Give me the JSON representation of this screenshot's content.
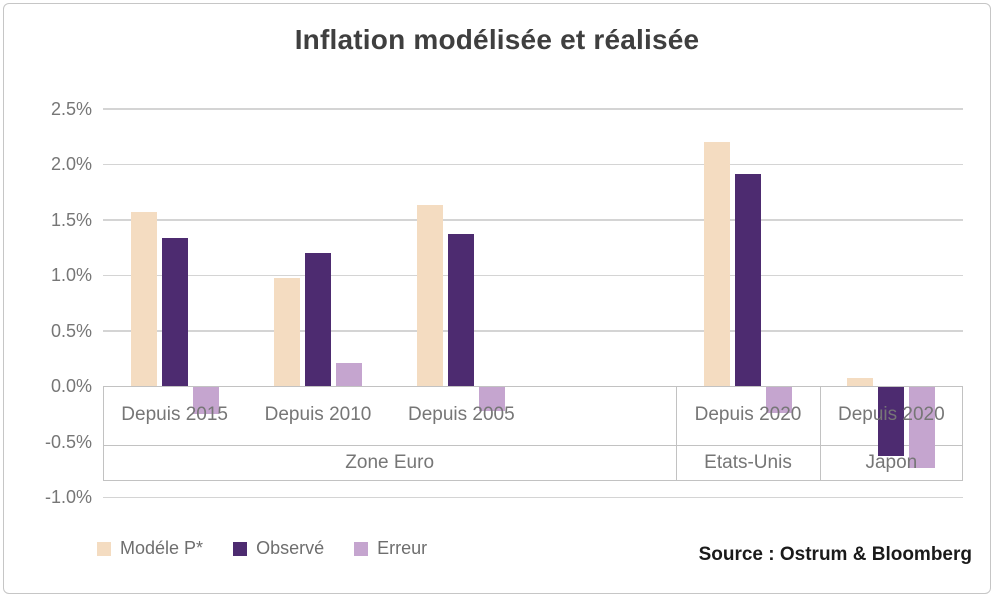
{
  "title": "Inflation modélisée et réalisée",
  "source_caption": "Source : Ostrum & Bloomberg",
  "colors": {
    "modele": "#F4DCC1",
    "observe": "#4D2B70",
    "erreur": "#C5A5CF",
    "gridline": "#D4D4D4",
    "band_border": "#C2C2C2",
    "title_text": "#3F3F3F",
    "axis_text": "#767676",
    "source_text": "#1A1A1A"
  },
  "legend": [
    {
      "label": "Modéle P*",
      "color": "#F4DCC1"
    },
    {
      "label": "Observé",
      "color": "#4D2B70"
    },
    {
      "label": "Erreur",
      "color": "#C5A5CF"
    }
  ],
  "chart_data": {
    "type": "bar",
    "title": "Inflation modélisée et réalisée",
    "unit": "%",
    "ylim": [
      -1.0,
      2.5
    ],
    "grid": true,
    "legend_position": "bottom-left",
    "yticks": [
      {
        "value": 2.5,
        "label": "2.5%"
      },
      {
        "value": 2.0,
        "label": "2.0%"
      },
      {
        "value": 1.5,
        "label": "1.5%"
      },
      {
        "value": 1.0,
        "label": "1.0%"
      },
      {
        "value": 0.5,
        "label": "0.5%"
      },
      {
        "value": 0.0,
        "label": "0.0%"
      },
      {
        "value": -0.5,
        "label": "-0.5%"
      },
      {
        "value": -1.0,
        "label": "-1.0%"
      }
    ],
    "categories": [
      "Depuis 2015",
      "Depuis 2010",
      "Depuis 2005",
      "",
      "Depuis 2020",
      "Depuis 2020"
    ],
    "category_groups": [
      {
        "label": "Zone Euro",
        "from": 0,
        "to": 4
      },
      {
        "label": "Etats-Unis",
        "from": 4,
        "to": 5
      },
      {
        "label": "Japon",
        "from": 5,
        "to": 6
      }
    ],
    "series": [
      {
        "name": "Modéle P*",
        "color": "#F4DCC1",
        "values": [
          1.57,
          0.97,
          1.63,
          null,
          2.2,
          0.07
        ]
      },
      {
        "name": "Observé",
        "color": "#4D2B70",
        "values": [
          1.33,
          1.2,
          1.37,
          null,
          1.91,
          -0.62
        ]
      },
      {
        "name": "Erreur",
        "color": "#C5A5CF",
        "values": [
          -0.24,
          0.21,
          -0.22,
          null,
          -0.23,
          -0.73
        ]
      }
    ]
  }
}
